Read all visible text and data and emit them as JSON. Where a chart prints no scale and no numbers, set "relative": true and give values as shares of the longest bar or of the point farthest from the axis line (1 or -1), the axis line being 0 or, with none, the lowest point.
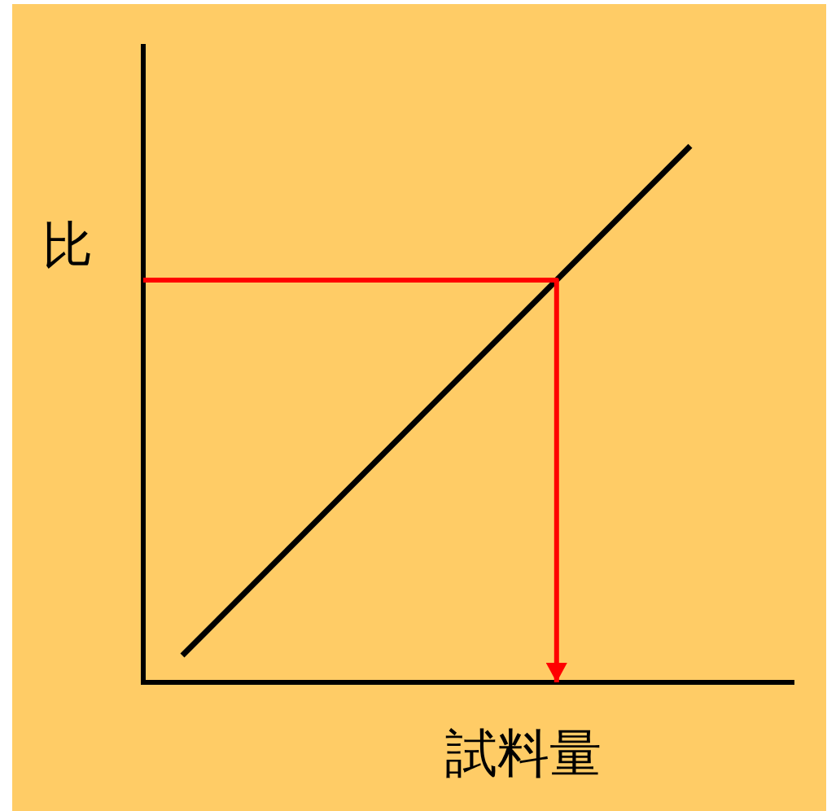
{
  "chart_data": {
    "type": "line",
    "relative": true,
    "xlabel": "試料量",
    "ylabel": "比",
    "categories": [
      null,
      null
    ],
    "series": [
      {
        "color": "#000000",
        "values": [
          0.05,
          1
        ]
      }
    ],
    "ref_lines": [
      {
        "axis": "y",
        "value": 0.75,
        "color": "#ff0000"
      }
    ]
  }
}
